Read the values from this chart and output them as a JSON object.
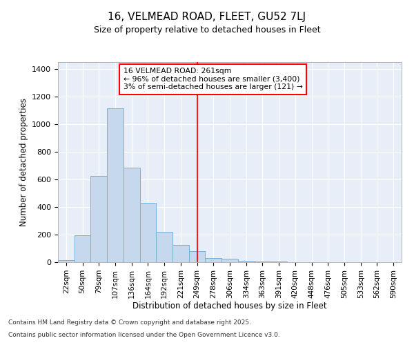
{
  "title": "16, VELMEAD ROAD, FLEET, GU52 7LJ",
  "subtitle": "Size of property relative to detached houses in Fleet",
  "xlabel": "Distribution of detached houses by size in Fleet",
  "ylabel": "Number of detached properties",
  "categories": [
    "22sqm",
    "50sqm",
    "79sqm",
    "107sqm",
    "136sqm",
    "164sqm",
    "192sqm",
    "221sqm",
    "249sqm",
    "278sqm",
    "306sqm",
    "334sqm",
    "363sqm",
    "391sqm",
    "420sqm",
    "448sqm",
    "476sqm",
    "505sqm",
    "533sqm",
    "562sqm",
    "590sqm"
  ],
  "bar_heights": [
    15,
    195,
    625,
    1115,
    685,
    430,
    220,
    125,
    80,
    32,
    27,
    10,
    5,
    3,
    2,
    1,
    1,
    0,
    0,
    0,
    0
  ],
  "bar_color": "#c5d8ed",
  "bar_edge_color": "#7aafd4",
  "vline_x_index": 8,
  "vline_color": "red",
  "annotation_text": "16 VELMEAD ROAD: 261sqm\n← 96% of detached houses are smaller (3,400)\n3% of semi-detached houses are larger (121) →",
  "annotation_box_color": "white",
  "annotation_box_edge": "red",
  "ylim": [
    0,
    1450
  ],
  "yticks": [
    0,
    200,
    400,
    600,
    800,
    1000,
    1200,
    1400
  ],
  "bg_color": "#e8eef8",
  "footer_line1": "Contains HM Land Registry data © Crown copyright and database right 2025.",
  "footer_line2": "Contains public sector information licensed under the Open Government Licence v3.0."
}
